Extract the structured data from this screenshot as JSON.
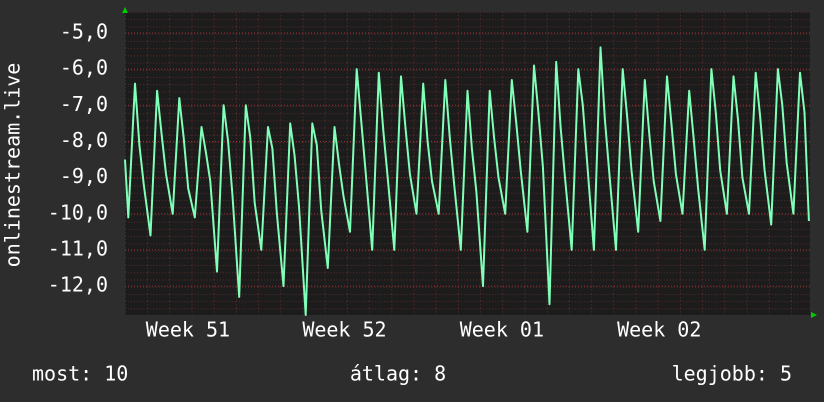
{
  "chart_data": {
    "type": "line",
    "ylabel": "onlinestream.live",
    "color": "#80ffb8",
    "grid": true,
    "xlim": [
      0,
      30.9
    ],
    "ylim": [
      -12.8,
      -4.42
    ],
    "yticks": [
      {
        "value": -5,
        "label": "-5,0"
      },
      {
        "value": -6,
        "label": "-6,0"
      },
      {
        "value": -7,
        "label": "-7,0"
      },
      {
        "value": -8,
        "label": "-8,0"
      },
      {
        "value": -9,
        "label": "-9,0"
      },
      {
        "value": -10,
        "label": "-10,0"
      },
      {
        "value": -11,
        "label": "-11,0"
      },
      {
        "value": -12,
        "label": "-12,0"
      }
    ],
    "xticks": [
      {
        "value": 2.84,
        "label": "Week 51"
      },
      {
        "value": 9.9,
        "label": "Week 52"
      },
      {
        "value": 17.0,
        "label": "Week 01"
      },
      {
        "value": 24.1,
        "label": "Week 02"
      }
    ],
    "x": [
      0,
      0.15,
      0.45,
      0.65,
      0.85,
      1.15,
      1.45,
      1.65,
      1.85,
      2.15,
      2.45,
      2.65,
      2.85,
      3.15,
      3.45,
      3.65,
      3.85,
      4.15,
      4.45,
      4.65,
      4.85,
      5.15,
      5.45,
      5.65,
      5.85,
      6.15,
      6.45,
      6.65,
      6.85,
      7.15,
      7.45,
      7.65,
      7.85,
      8.15,
      8.45,
      8.65,
      8.85,
      9.15,
      9.45,
      9.65,
      9.85,
      10.15,
      10.45,
      10.65,
      10.85,
      11.15,
      11.45,
      11.65,
      11.85,
      12.15,
      12.45,
      12.65,
      12.85,
      13.15,
      13.45,
      13.65,
      13.85,
      14.15,
      14.45,
      14.65,
      14.85,
      15.15,
      15.45,
      15.65,
      15.85,
      16.15,
      16.45,
      16.65,
      16.85,
      17.15,
      17.45,
      17.65,
      17.85,
      18.15,
      18.45,
      18.65,
      18.85,
      19.15,
      19.45,
      19.65,
      19.85,
      20.15,
      20.45,
      20.65,
      20.85,
      21.15,
      21.45,
      21.65,
      21.85,
      22.15,
      22.45,
      22.65,
      22.85,
      23.15,
      23.45,
      23.65,
      23.85,
      24.15,
      24.45,
      24.65,
      24.85,
      25.15,
      25.45,
      25.65,
      25.85,
      26.15,
      26.45,
      26.65,
      26.85,
      27.15,
      27.45,
      27.65,
      27.85,
      28.15,
      28.45,
      28.65,
      28.85,
      29.15,
      29.45,
      29.65,
      29.85,
      30.15,
      30.45,
      30.65,
      30.85
    ],
    "values": [
      -8.5,
      -10.1,
      -6.4,
      -8.1,
      -9.2,
      -10.6,
      -6.6,
      -7.8,
      -8.9,
      -10.0,
      -6.8,
      -7.9,
      -9.3,
      -10.1,
      -7.6,
      -8.3,
      -9.1,
      -11.6,
      -7.0,
      -8.0,
      -9.5,
      -12.3,
      -7.0,
      -7.9,
      -9.7,
      -11.0,
      -7.6,
      -8.2,
      -10.0,
      -12.0,
      -7.5,
      -8.4,
      -9.8,
      -12.8,
      -7.5,
      -8.1,
      -9.9,
      -11.5,
      -7.6,
      -8.6,
      -9.5,
      -10.5,
      -6.0,
      -7.4,
      -8.8,
      -11.0,
      -6.1,
      -7.7,
      -9.0,
      -11.0,
      -6.2,
      -7.6,
      -8.9,
      -10.0,
      -6.4,
      -8.0,
      -9.1,
      -10.0,
      -6.3,
      -7.9,
      -9.2,
      -11.0,
      -6.6,
      -8.2,
      -9.4,
      -12.0,
      -6.6,
      -7.9,
      -9.0,
      -10.0,
      -6.3,
      -7.5,
      -8.8,
      -10.5,
      -5.9,
      -7.2,
      -8.7,
      -12.5,
      -5.8,
      -7.6,
      -9.0,
      -11.0,
      -6.0,
      -7.0,
      -8.6,
      -11.0,
      -5.4,
      -7.4,
      -8.9,
      -11.0,
      -6.0,
      -7.3,
      -8.8,
      -10.5,
      -6.3,
      -7.8,
      -9.1,
      -10.2,
      -6.2,
      -7.5,
      -8.9,
      -10.0,
      -6.6,
      -7.9,
      -9.3,
      -11.0,
      -6.0,
      -7.2,
      -8.8,
      -10.0,
      -6.2,
      -7.4,
      -9.0,
      -10.0,
      -6.1,
      -7.3,
      -8.8,
      -10.3,
      -6.0,
      -7.0,
      -8.6,
      -10.0,
      -6.1,
      -7.2,
      -10.2
    ],
    "footer": [
      "most: 10",
      "átlag: 8",
      "legjobb: 5"
    ]
  }
}
